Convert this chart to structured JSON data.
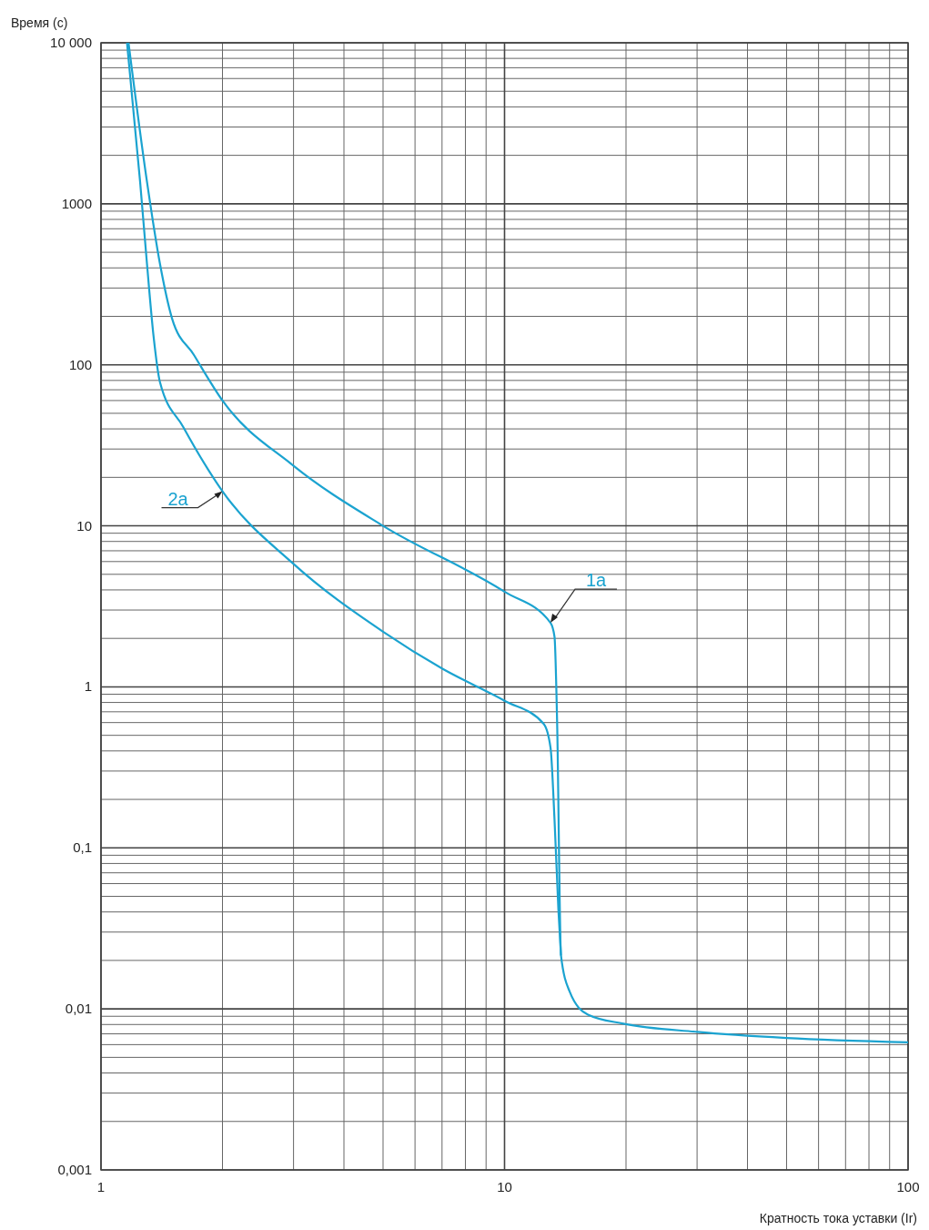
{
  "chart_data": {
    "type": "line",
    "xlabel": "Кратность тока уставки (Ir)",
    "ylabel": "Время (с)",
    "log": "xy",
    "grid": true,
    "line_style": "solid",
    "xlim": [
      1,
      100
    ],
    "xticks": [
      1,
      10,
      100
    ],
    "ylim": [
      0.001,
      10000
    ],
    "yticks": [
      {
        "value": 0.001,
        "label": "0,001"
      },
      {
        "value": 0.01,
        "label": "0,01"
      },
      {
        "value": 0.1,
        "label": "0,1"
      },
      1,
      10,
      100,
      1000,
      {
        "value": 10000,
        "label": "10 000"
      }
    ],
    "series": [
      {
        "color": "#1ba3d0",
        "x": [
          1.17,
          1.3,
          1.4,
          1.5,
          1.7,
          2,
          3,
          5,
          10,
          13,
          13.3,
          13.5,
          13.8,
          14.5,
          16.1,
          19.7,
          30,
          50,
          100
        ],
        "values": [
          10000,
          1370,
          424,
          194,
          115,
          60,
          23.6,
          10,
          3.9,
          2.5,
          2.05,
          0.6,
          0.0215,
          0.0128,
          0.0092,
          0.0081,
          0.0072,
          0.0066,
          0.0062
        ]
      },
      {
        "color": "#1ba3d0",
        "x": [
          1.16,
          1.25,
          1.3,
          1.35,
          1.4,
          1.6,
          2,
          3,
          5,
          7,
          10,
          12.5,
          13,
          13.3,
          13.6,
          13.8
        ],
        "values": [
          10000,
          1370,
          424,
          150,
          78,
          41,
          16.4,
          5.8,
          2.2,
          1.3,
          0.82,
          0.59,
          0.42,
          0.15,
          0.041,
          0.0215
        ]
      }
    ],
    "annotations": [
      {
        "text": "1a",
        "x": 13,
        "y": 2.5
      },
      {
        "text": "2a",
        "x": 2,
        "y": 16.4
      }
    ]
  }
}
